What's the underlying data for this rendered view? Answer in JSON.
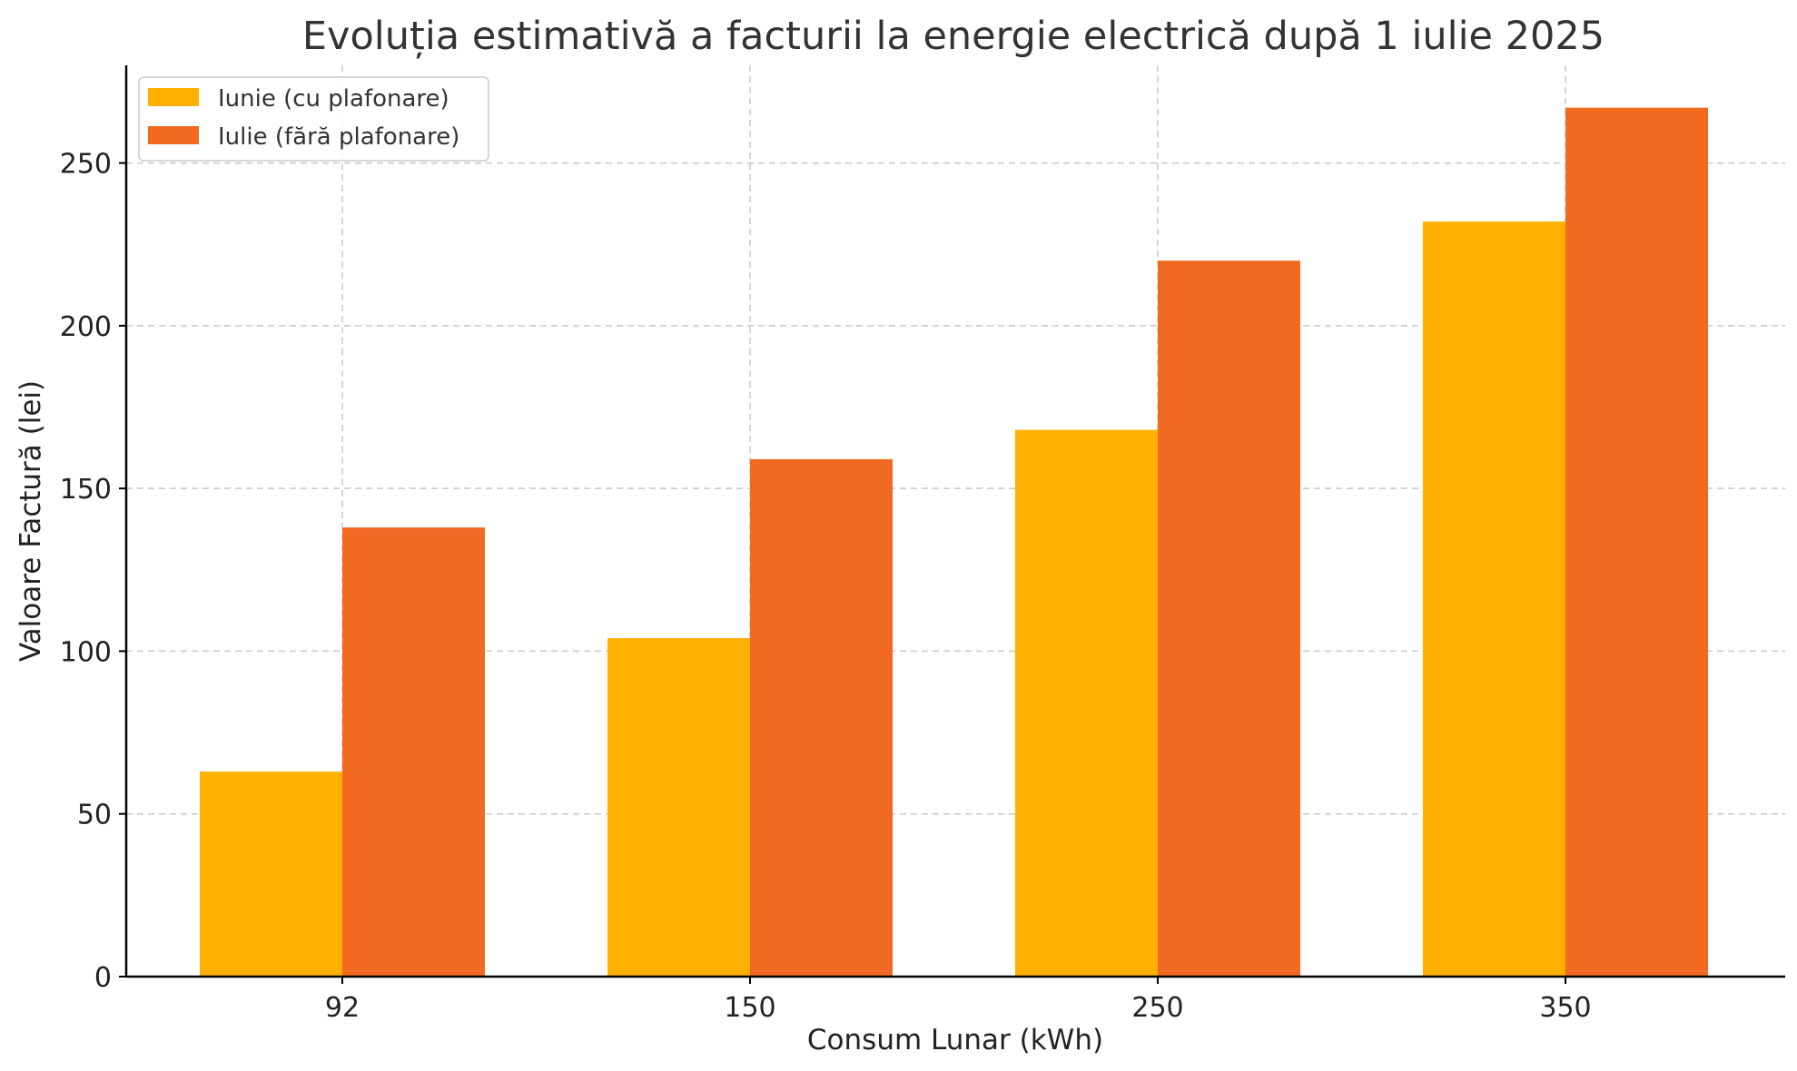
{
  "chart_data": {
    "type": "bar",
    "title": "Evoluția estimativă a facturii la energie electrică după 1 iulie 2025",
    "xlabel": "Consum Lunar (kWh)",
    "ylabel": "Valoare Factură (lei)",
    "categories": [
      "92",
      "150",
      "250",
      "350"
    ],
    "series": [
      {
        "name": "Iunie (cu plafonare)",
        "color": "#FFB000",
        "values": [
          63,
          104,
          168,
          232
        ]
      },
      {
        "name": "Iulie (fără plafonare)",
        "color": "#F26A21",
        "values": [
          138,
          159,
          220,
          267
        ]
      }
    ],
    "ylim": [
      0,
      280
    ],
    "yticks": [
      0,
      50,
      100,
      150,
      200,
      250
    ],
    "grid": true,
    "legend_position": "top-left"
  }
}
